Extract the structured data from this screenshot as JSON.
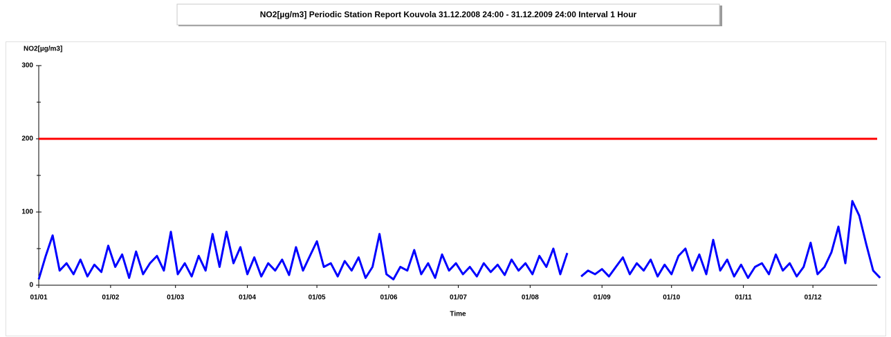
{
  "chart_data": {
    "type": "line",
    "title": "NO2[µg/m3] Periodic Station Report Kouvola 31.12.2008 24:00 - 31.12.2009 24:00 Interval 1 Hour",
    "ylabel": "NO2[µg/m3]",
    "xlabel": "Time",
    "x": [
      0,
      3,
      6,
      9,
      12,
      15,
      18,
      21,
      24,
      27,
      30,
      33,
      36,
      39,
      42,
      45,
      48,
      51,
      54,
      57,
      60,
      63,
      66,
      69,
      72,
      75,
      78,
      81,
      84,
      87,
      90,
      93,
      96,
      99,
      102,
      105,
      108,
      111,
      114,
      117,
      120,
      123,
      126,
      129,
      132,
      135,
      138,
      141,
      144,
      147,
      150,
      153,
      156,
      159,
      162,
      165,
      168,
      171,
      174,
      177,
      180,
      183,
      186,
      189,
      192,
      195,
      198,
      201,
      204,
      207,
      210,
      213,
      216,
      219,
      222,
      225,
      228,
      231,
      234,
      237,
      240,
      243,
      246,
      249,
      252,
      255,
      258,
      261,
      264,
      267,
      270,
      273,
      276,
      279,
      282,
      285,
      288,
      291,
      294,
      297,
      300,
      303,
      306,
      309,
      312,
      315,
      318,
      321,
      324,
      327,
      330,
      333,
      336,
      339,
      342,
      345,
      348,
      351,
      354,
      357,
      360,
      363
    ],
    "series": [
      {
        "name": "NO2",
        "color": "#0000ff",
        "values": [
          8,
          40,
          68,
          20,
          30,
          15,
          35,
          12,
          28,
          18,
          54,
          25,
          42,
          10,
          46,
          15,
          30,
          40,
          20,
          73,
          15,
          30,
          12,
          40,
          20,
          70,
          25,
          73,
          30,
          52,
          15,
          38,
          12,
          30,
          20,
          35,
          14,
          52,
          20,
          40,
          60,
          25,
          30,
          12,
          33,
          20,
          38,
          10,
          25,
          70,
          15,
          8,
          25,
          20,
          48,
          15,
          30,
          10,
          42,
          20,
          30,
          15,
          25,
          12,
          30,
          18,
          28,
          14,
          35,
          20,
          30,
          15,
          40,
          25,
          50,
          15,
          44,
          null,
          12,
          20,
          15,
          22,
          12,
          25,
          38,
          15,
          30,
          20,
          35,
          12,
          28,
          15,
          40,
          50,
          20,
          42,
          15,
          62,
          20,
          35,
          12,
          28,
          10,
          25,
          30,
          15,
          42,
          20,
          30,
          12,
          25,
          58,
          15,
          25,
          45,
          80,
          30,
          115,
          95,
          56,
          20,
          10
        ]
      }
    ],
    "threshold": {
      "value": 200,
      "color": "#ff0000"
    },
    "xlim": [
      0,
      365
    ],
    "xticks": [
      {
        "value": 0,
        "label": "01/01"
      },
      {
        "value": 31,
        "label": "01/02"
      },
      {
        "value": 59,
        "label": "01/03"
      },
      {
        "value": 90,
        "label": "01/04"
      },
      {
        "value": 120,
        "label": "01/05"
      },
      {
        "value": 151,
        "label": "01/06"
      },
      {
        "value": 181,
        "label": "01/07"
      },
      {
        "value": 212,
        "label": "01/08"
      },
      {
        "value": 243,
        "label": "01/09"
      },
      {
        "value": 273,
        "label": "01/10"
      },
      {
        "value": 304,
        "label": "01/11"
      },
      {
        "value": 334,
        "label": "01/12"
      }
    ],
    "ylim": [
      0,
      300
    ],
    "yticks": [
      0,
      100,
      200,
      300
    ],
    "yminor_ticks": [
      50,
      150,
      250
    ],
    "grid": false
  }
}
